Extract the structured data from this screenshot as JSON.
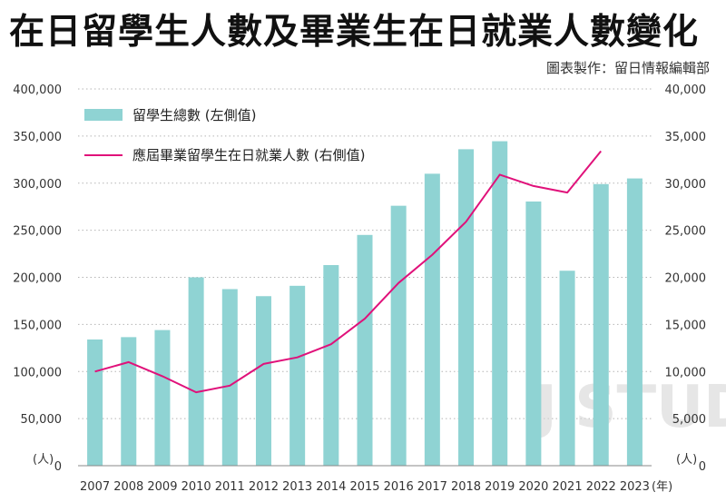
{
  "title": "在日留學生人數及畢業生在日就業人數變化",
  "credit": "圖表製作：留日情報編輯部",
  "chart_data": {
    "type": "bar+line",
    "categories": [
      "2007",
      "2008",
      "2009",
      "2010",
      "2011",
      "2012",
      "2013",
      "2014",
      "2015",
      "2016",
      "2017",
      "2018",
      "2019",
      "2020",
      "2021",
      "2022",
      "2023"
    ],
    "series": [
      {
        "name": "留學生總數 (左側值)",
        "type": "bar",
        "axis": "left",
        "color": "#8fd3d3",
        "values": [
          134000,
          136500,
          144000,
          200000,
          187500,
          180000,
          191000,
          213000,
          245000,
          276000,
          310000,
          336000,
          344500,
          280500,
          207000,
          299000,
          305000
        ]
      },
      {
        "name": "應屆畢業留學生在日就業人數 (右側值)",
        "type": "line",
        "axis": "right",
        "color": "#e0117a",
        "values": [
          10000,
          11000,
          9500,
          7800,
          8500,
          10800,
          11500,
          12900,
          15600,
          19400,
          22400,
          25900,
          30900,
          29700,
          29000,
          33400,
          null
        ]
      }
    ],
    "yleft": {
      "min": 0,
      "max": 400000,
      "ticks": [
        "0",
        "50,000",
        "100,000",
        "150,000",
        "200,000",
        "250,000",
        "300,000",
        "350,000",
        "400,000"
      ],
      "unit": "(人)"
    },
    "yright": {
      "min": 0,
      "max": 40000,
      "ticks": [
        "0",
        "5,000",
        "10,000",
        "15,000",
        "20,000",
        "25,000",
        "30,000",
        "35,000",
        "40,000"
      ],
      "unit": "(人)"
    },
    "xunit": "(年)",
    "grid": true,
    "legend": "top-left",
    "watermark": "J'STUDY"
  }
}
